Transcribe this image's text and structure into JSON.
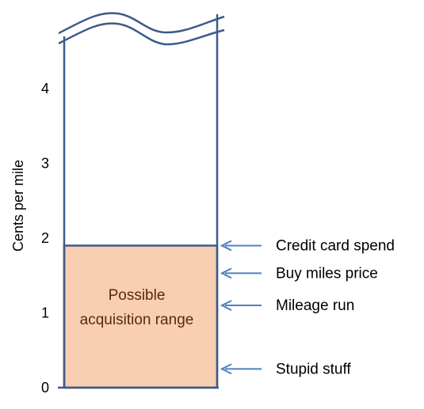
{
  "chart_data": {
    "type": "bar",
    "ylabel": "Cents per mile",
    "ylim": [
      0,
      4.8
    ],
    "y_ticks": [
      0,
      1,
      2,
      3,
      4
    ],
    "grid": false,
    "axis_break": "top",
    "range": {
      "label_lines": [
        "Possible",
        "acquisition range"
      ],
      "from": 0,
      "to": 1.9
    },
    "annotations": [
      {
        "label": "Credit card spend",
        "value": 1.9
      },
      {
        "label": "Buy miles price",
        "value": 1.53
      },
      {
        "label": "Mileage run",
        "value": 1.1
      },
      {
        "label": "Stupid stuff",
        "value": 0.25
      }
    ],
    "colors": {
      "outline": "#3d5a8a",
      "fill": "#f8cfb0",
      "arrow": "#4f81bd",
      "range_text": "#5a2a0a"
    }
  }
}
